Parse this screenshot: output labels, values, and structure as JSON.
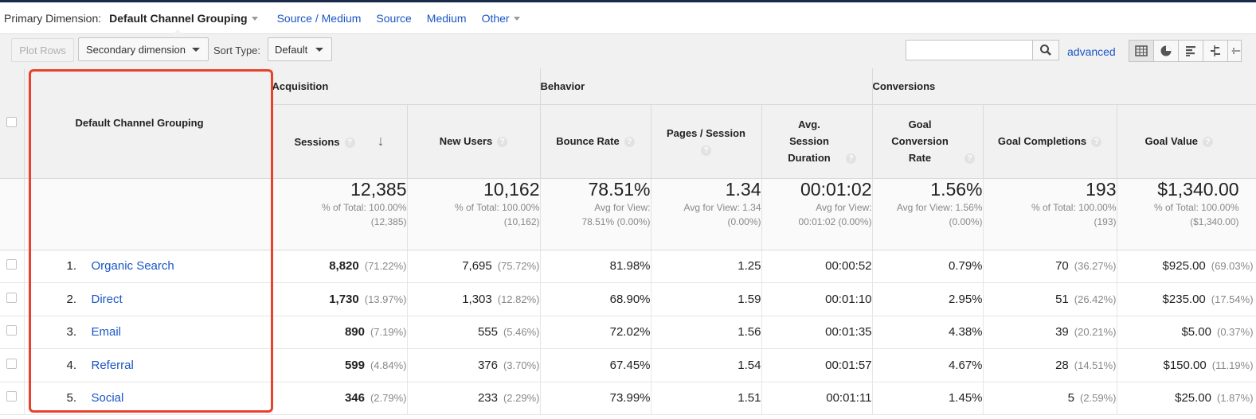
{
  "primary_dimension": {
    "label": "Primary Dimension:",
    "active": "Default Channel Grouping",
    "links": [
      "Source / Medium",
      "Source",
      "Medium",
      "Other"
    ]
  },
  "toolbar": {
    "plot_rows": "Plot Rows",
    "secondary_dimension": "Secondary dimension",
    "sort_type_label": "Sort Type:",
    "sort_type_value": "Default",
    "search_placeholder": "",
    "advanced": "advanced",
    "view_icons": [
      "table-view-icon",
      "pie-view-icon",
      "performance-view-icon",
      "comparison-view-icon",
      "pivot-view-icon"
    ]
  },
  "table": {
    "groups": [
      "Acquisition",
      "Behavior",
      "Conversions"
    ],
    "dimension_header": "Default Channel Grouping",
    "columns": [
      "Sessions",
      "New Users",
      "Bounce Rate",
      "Pages / Session",
      "Avg. Session Duration",
      "Goal Conversion Rate",
      "Goal Completions",
      "Goal Value"
    ],
    "totals": [
      {
        "value": "12,385",
        "sub1": "% of Total: 100.00%",
        "sub2": "(12,385)"
      },
      {
        "value": "10,162",
        "sub1": "% of Total: 100.00%",
        "sub2": "(10,162)"
      },
      {
        "value": "78.51%",
        "sub1": "Avg for View:",
        "sub2": "78.51% (0.00%)"
      },
      {
        "value": "1.34",
        "sub1": "Avg for View: 1.34",
        "sub2": "(0.00%)"
      },
      {
        "value": "00:01:02",
        "sub1": "Avg for View:",
        "sub2": "00:01:02 (0.00%)"
      },
      {
        "value": "1.56%",
        "sub1": "Avg for View: 1.56%",
        "sub2": "(0.00%)"
      },
      {
        "value": "193",
        "sub1": "% of Total: 100.00%",
        "sub2": "(193)"
      },
      {
        "value": "$1,340.00",
        "sub1": "% of Total: 100.00%",
        "sub2": "($1,340.00)"
      }
    ],
    "rows": [
      {
        "index": "1.",
        "channel": "Organic Search",
        "sessions": "8,820",
        "sessions_pct": "(71.22%)",
        "new_users": "7,695",
        "new_users_pct": "(75.72%)",
        "bounce_rate": "81.98%",
        "pages_session": "1.25",
        "avg_duration": "00:00:52",
        "goal_conv_rate": "0.79%",
        "goal_completions": "70",
        "goal_completions_pct": "(36.27%)",
        "goal_value": "$925.00",
        "goal_value_pct": "(69.03%)"
      },
      {
        "index": "2.",
        "channel": "Direct",
        "sessions": "1,730",
        "sessions_pct": "(13.97%)",
        "new_users": "1,303",
        "new_users_pct": "(12.82%)",
        "bounce_rate": "68.90%",
        "pages_session": "1.59",
        "avg_duration": "00:01:10",
        "goal_conv_rate": "2.95%",
        "goal_completions": "51",
        "goal_completions_pct": "(26.42%)",
        "goal_value": "$235.00",
        "goal_value_pct": "(17.54%)"
      },
      {
        "index": "3.",
        "channel": "Email",
        "sessions": "890",
        "sessions_pct": "(7.19%)",
        "new_users": "555",
        "new_users_pct": "(5.46%)",
        "bounce_rate": "72.02%",
        "pages_session": "1.56",
        "avg_duration": "00:01:35",
        "goal_conv_rate": "4.38%",
        "goal_completions": "39",
        "goal_completions_pct": "(20.21%)",
        "goal_value": "$5.00",
        "goal_value_pct": "(0.37%)"
      },
      {
        "index": "4.",
        "channel": "Referral",
        "sessions": "599",
        "sessions_pct": "(4.84%)",
        "new_users": "376",
        "new_users_pct": "(3.70%)",
        "bounce_rate": "67.45%",
        "pages_session": "1.54",
        "avg_duration": "00:01:57",
        "goal_conv_rate": "4.67%",
        "goal_completions": "28",
        "goal_completions_pct": "(14.51%)",
        "goal_value": "$150.00",
        "goal_value_pct": "(11.19%)"
      },
      {
        "index": "5.",
        "channel": "Social",
        "sessions": "346",
        "sessions_pct": "(2.79%)",
        "new_users": "233",
        "new_users_pct": "(2.29%)",
        "bounce_rate": "73.99%",
        "pages_session": "1.51",
        "avg_duration": "00:01:11",
        "goal_conv_rate": "1.45%",
        "goal_completions": "5",
        "goal_completions_pct": "(2.59%)",
        "goal_value": "$25.00",
        "goal_value_pct": "(1.87%)"
      }
    ]
  },
  "colors": {
    "link": "#1a56c4",
    "highlight": "#e8412c",
    "header_bg": "#f1f1f1"
  }
}
